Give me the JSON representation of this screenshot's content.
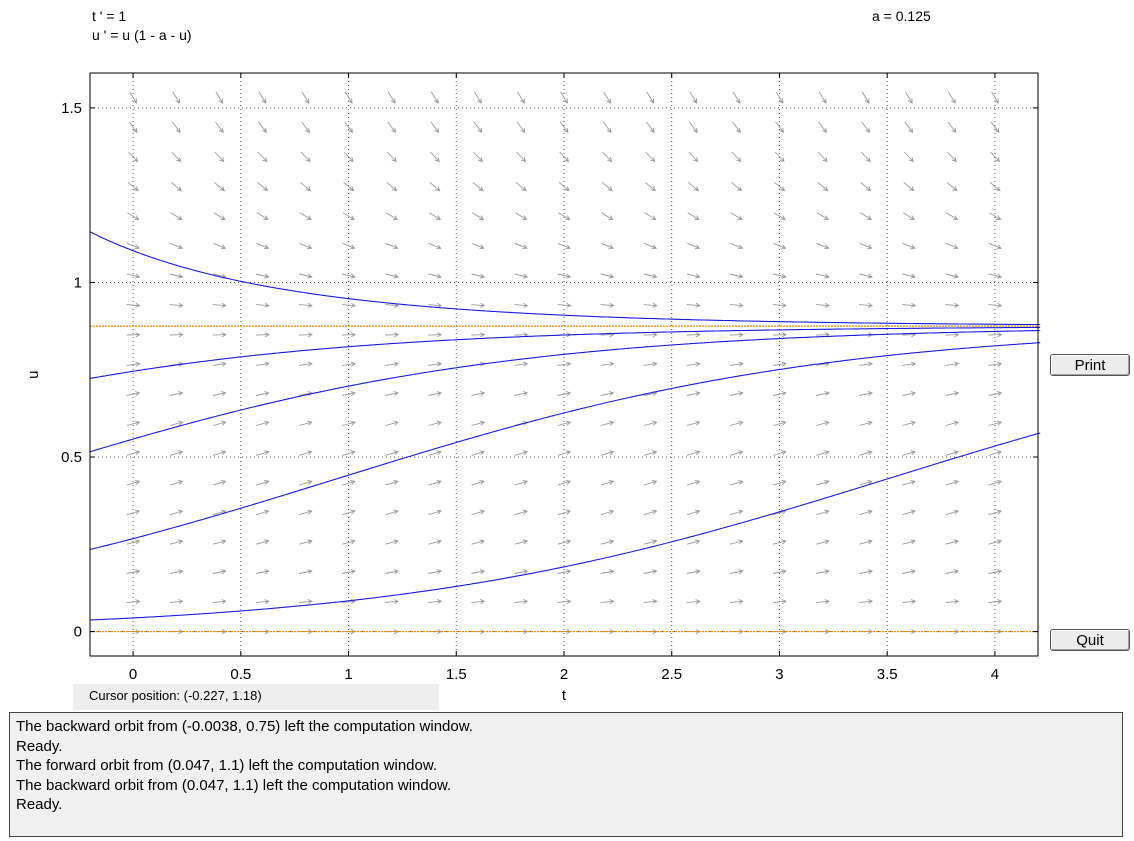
{
  "header": {
    "equation_t": "t ' = 1",
    "equation_u": "u ' = u (1 - a - u)",
    "parameter": "a = 0.125"
  },
  "buttons": {
    "print": "Print",
    "quit": "Quit"
  },
  "cursor_position": "Cursor position:  (-0.227, 1.18)",
  "messages": [
    "The backward orbit from (-0.0038, 0.75) left the computation window.",
    "Ready.",
    "The forward orbit from (0.047, 1.1) left the computation window.",
    "The backward orbit from (0.047, 1.1) left the computation window.",
    "Ready."
  ],
  "colors": {
    "solution": "#1a1ae6",
    "equilibrium": "#f08a00",
    "field": "#9a9a9a",
    "grid": "#555555"
  },
  "chart_data": {
    "type": "line",
    "title": "",
    "xlabel": "t",
    "ylabel": "u",
    "xlim": [
      -0.2,
      4.2
    ],
    "ylim": [
      -0.07,
      1.6
    ],
    "xticks": [
      0,
      0.5,
      1,
      1.5,
      2,
      2.5,
      3,
      3.5,
      4
    ],
    "xtick_labels": [
      "0",
      "0.5",
      "1",
      "1.5",
      "2",
      "2.5",
      "3",
      "3.5",
      "4"
    ],
    "yticks": [
      0,
      0.5,
      1,
      1.5
    ],
    "ytick_labels": [
      "0",
      "0.5",
      "1",
      "1.5"
    ],
    "grid": true,
    "equation": "u' = u (1 - a - u)",
    "a": 0.125,
    "equilibria": [
      0,
      0.875
    ],
    "solutions": [
      {
        "t0": -0.2,
        "u0": 1.145
      },
      {
        "t0": -0.2,
        "u0": 0.725
      },
      {
        "t0": -0.2,
        "u0": 0.515
      },
      {
        "t0": -0.2,
        "u0": 0.235
      },
      {
        "t0": -0.2,
        "u0": 0.033
      }
    ],
    "direction_field": {
      "t_values": [
        0,
        0.2,
        0.4,
        0.6,
        0.8,
        1.0,
        1.2,
        1.4,
        1.6,
        1.8,
        2.0,
        2.2,
        2.4,
        2.6,
        2.8,
        3.0,
        3.2,
        3.4,
        3.6,
        3.8,
        4.0
      ],
      "u_values": [
        0,
        0.085,
        0.17,
        0.255,
        0.34,
        0.425,
        0.51,
        0.595,
        0.68,
        0.765,
        0.85,
        0.935,
        1.02,
        1.105,
        1.19,
        1.275,
        1.36,
        1.445,
        1.53
      ]
    }
  }
}
